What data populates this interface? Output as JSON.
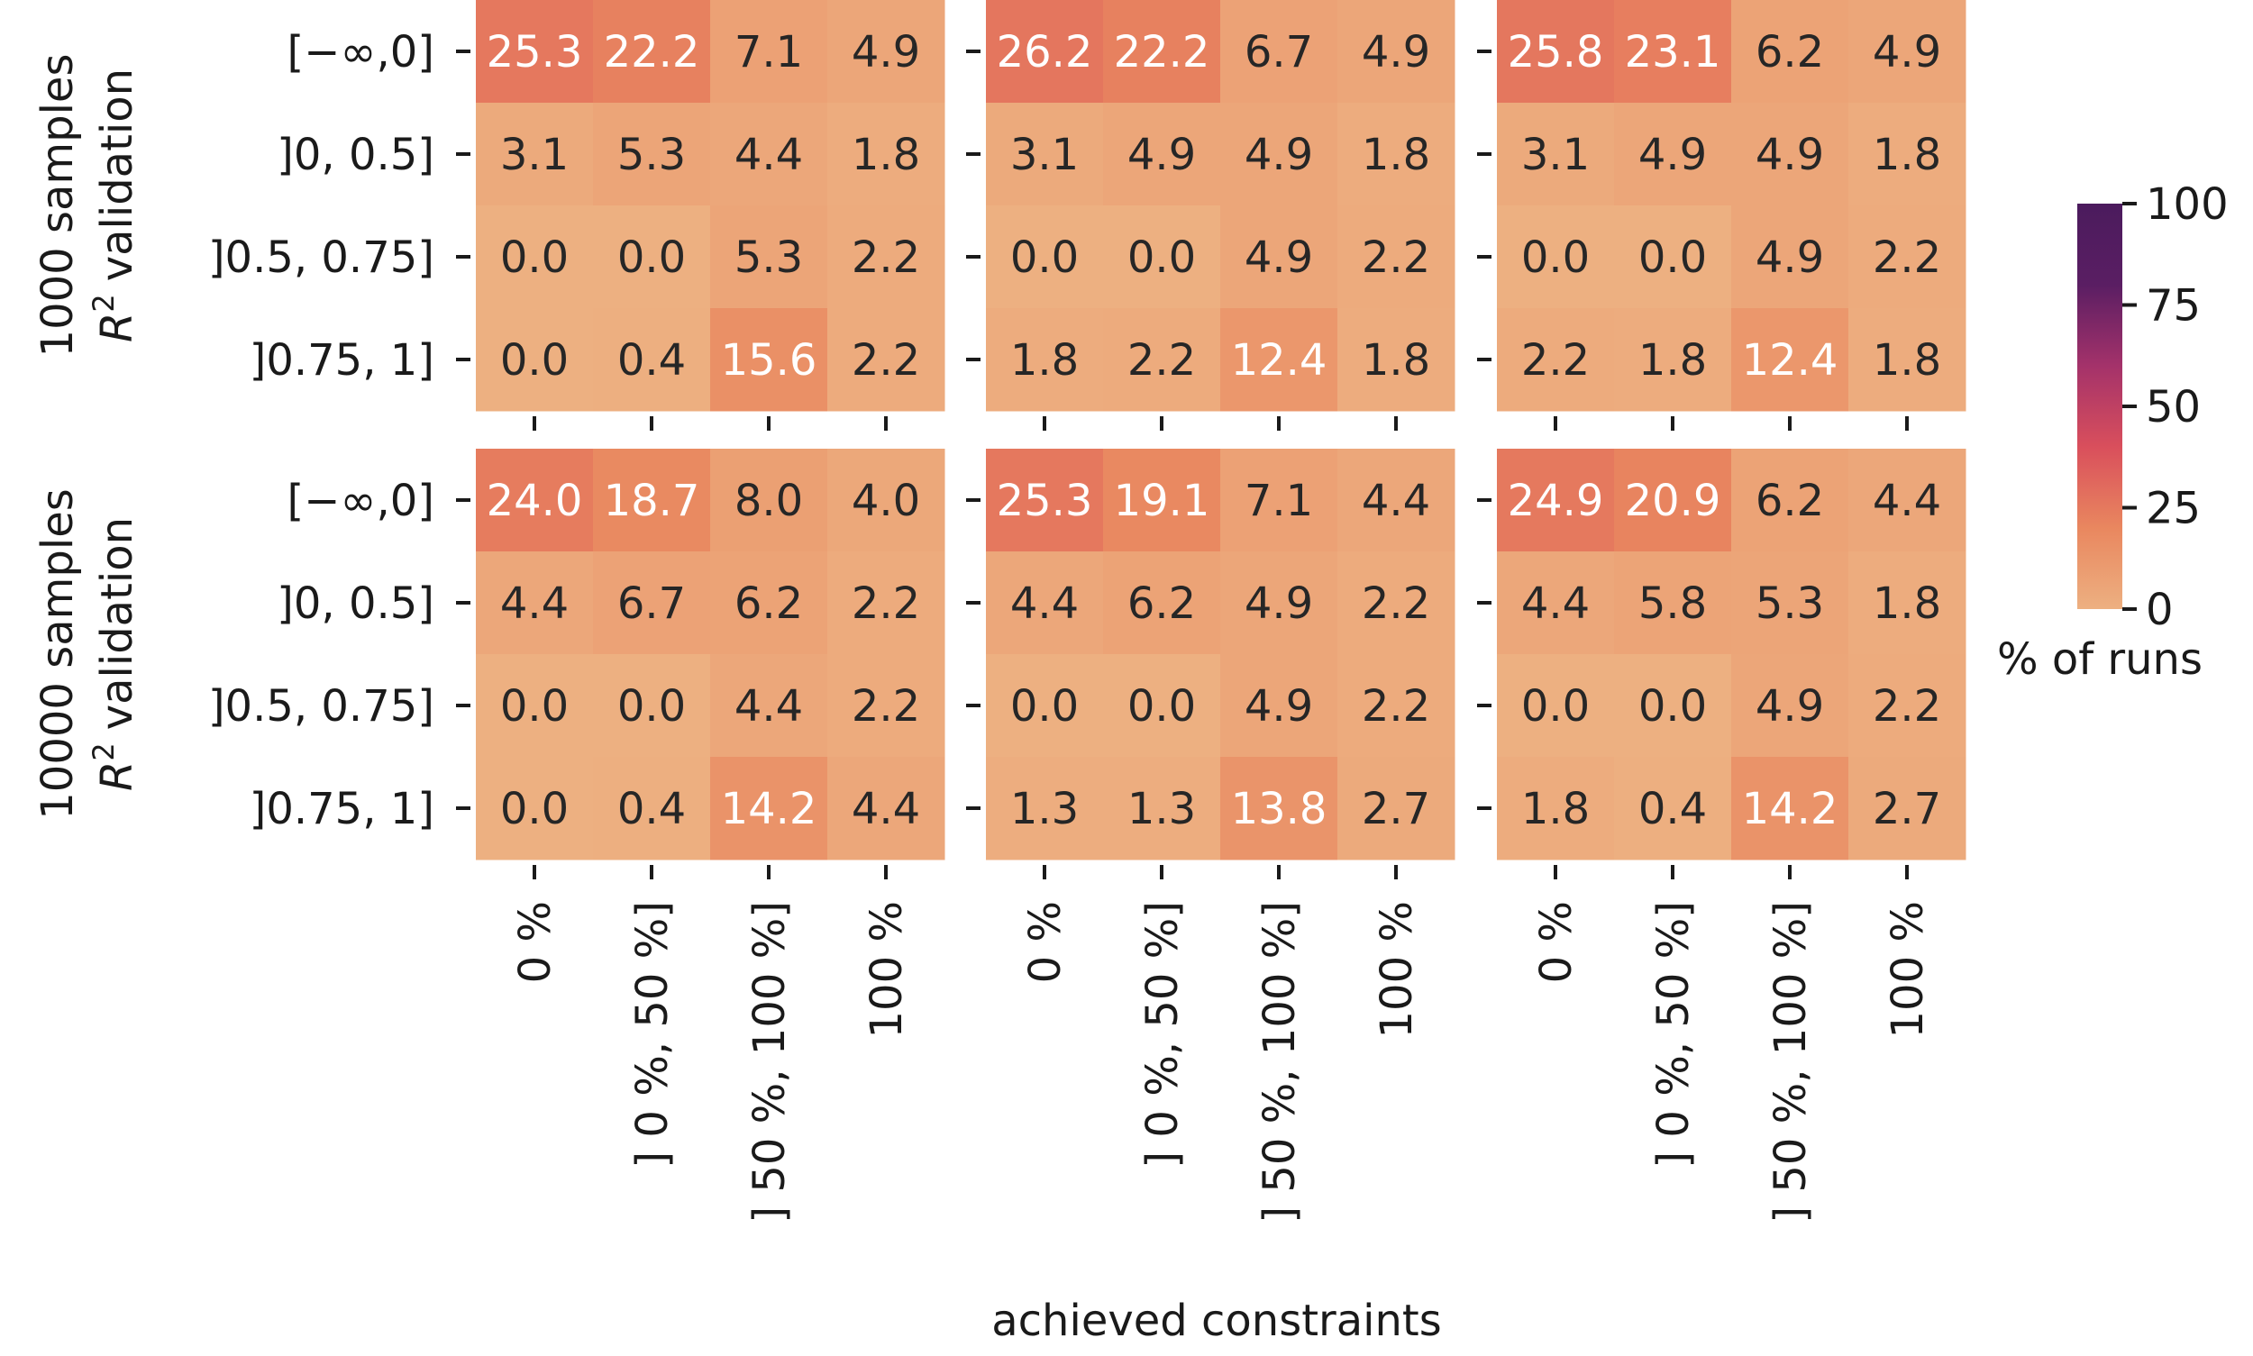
{
  "chart_data": {
    "type": "heatmap",
    "xlabel": "achieved constraints",
    "x_categories": [
      "0 %",
      "] 0 %, 50 %]",
      "] 50 %, 100 %]",
      "100 %"
    ],
    "y_categories": [
      "[−∞,0]",
      "]0, 0.5]",
      "]0.5, 0.75]",
      "]0.75, 1]"
    ],
    "row_titles": [
      {
        "line1": "1000 samples",
        "line2_symbol": "R",
        "line2_sup": "2",
        "line2_rest": "validation"
      },
      {
        "line1": "10000 samples",
        "line2_symbol": "R",
        "line2_sup": "2",
        "line2_rest": "validation"
      }
    ],
    "colorbar": {
      "label": "% of runs",
      "range": [
        0,
        100
      ],
      "ticks": [
        "0",
        "25",
        "50",
        "75",
        "100"
      ],
      "colormap": "flare",
      "stops": [
        "#edb081",
        "#e9875f",
        "#d94f5c",
        "#a4326a",
        "#5a1e63",
        "#4b1b5d"
      ]
    },
    "panels": [
      {
        "row": 0,
        "col": 0,
        "values": [
          [
            25.3,
            22.2,
            7.1,
            4.9
          ],
          [
            3.1,
            5.3,
            4.4,
            1.8
          ],
          [
            0.0,
            0.0,
            5.3,
            2.2
          ],
          [
            0.0,
            0.4,
            15.6,
            2.2
          ]
        ]
      },
      {
        "row": 0,
        "col": 1,
        "values": [
          [
            26.2,
            22.2,
            6.7,
            4.9
          ],
          [
            3.1,
            4.9,
            4.9,
            1.8
          ],
          [
            0.0,
            0.0,
            4.9,
            2.2
          ],
          [
            1.8,
            2.2,
            12.4,
            1.8
          ]
        ]
      },
      {
        "row": 0,
        "col": 2,
        "values": [
          [
            25.8,
            23.1,
            6.2,
            4.9
          ],
          [
            3.1,
            4.9,
            4.9,
            1.8
          ],
          [
            0.0,
            0.0,
            4.9,
            2.2
          ],
          [
            2.2,
            1.8,
            12.4,
            1.8
          ]
        ]
      },
      {
        "row": 1,
        "col": 0,
        "values": [
          [
            24.0,
            18.7,
            8.0,
            4.0
          ],
          [
            4.4,
            6.7,
            6.2,
            2.2
          ],
          [
            0.0,
            0.0,
            4.4,
            2.2
          ],
          [
            0.0,
            0.4,
            14.2,
            4.4
          ]
        ]
      },
      {
        "row": 1,
        "col": 1,
        "values": [
          [
            25.3,
            19.1,
            7.1,
            4.4
          ],
          [
            4.4,
            6.2,
            4.9,
            2.2
          ],
          [
            0.0,
            0.0,
            4.9,
            2.2
          ],
          [
            1.3,
            1.3,
            13.8,
            2.7
          ]
        ]
      },
      {
        "row": 1,
        "col": 2,
        "values": [
          [
            24.9,
            20.9,
            6.2,
            4.4
          ],
          [
            4.4,
            5.8,
            5.3,
            1.8
          ],
          [
            0.0,
            0.0,
            4.9,
            2.2
          ],
          [
            1.8,
            0.4,
            14.2,
            2.7
          ]
        ]
      }
    ],
    "cell_text_colors": {
      "dark": "#262626",
      "light": "#ffffff"
    },
    "light_text_threshold": 10
  }
}
